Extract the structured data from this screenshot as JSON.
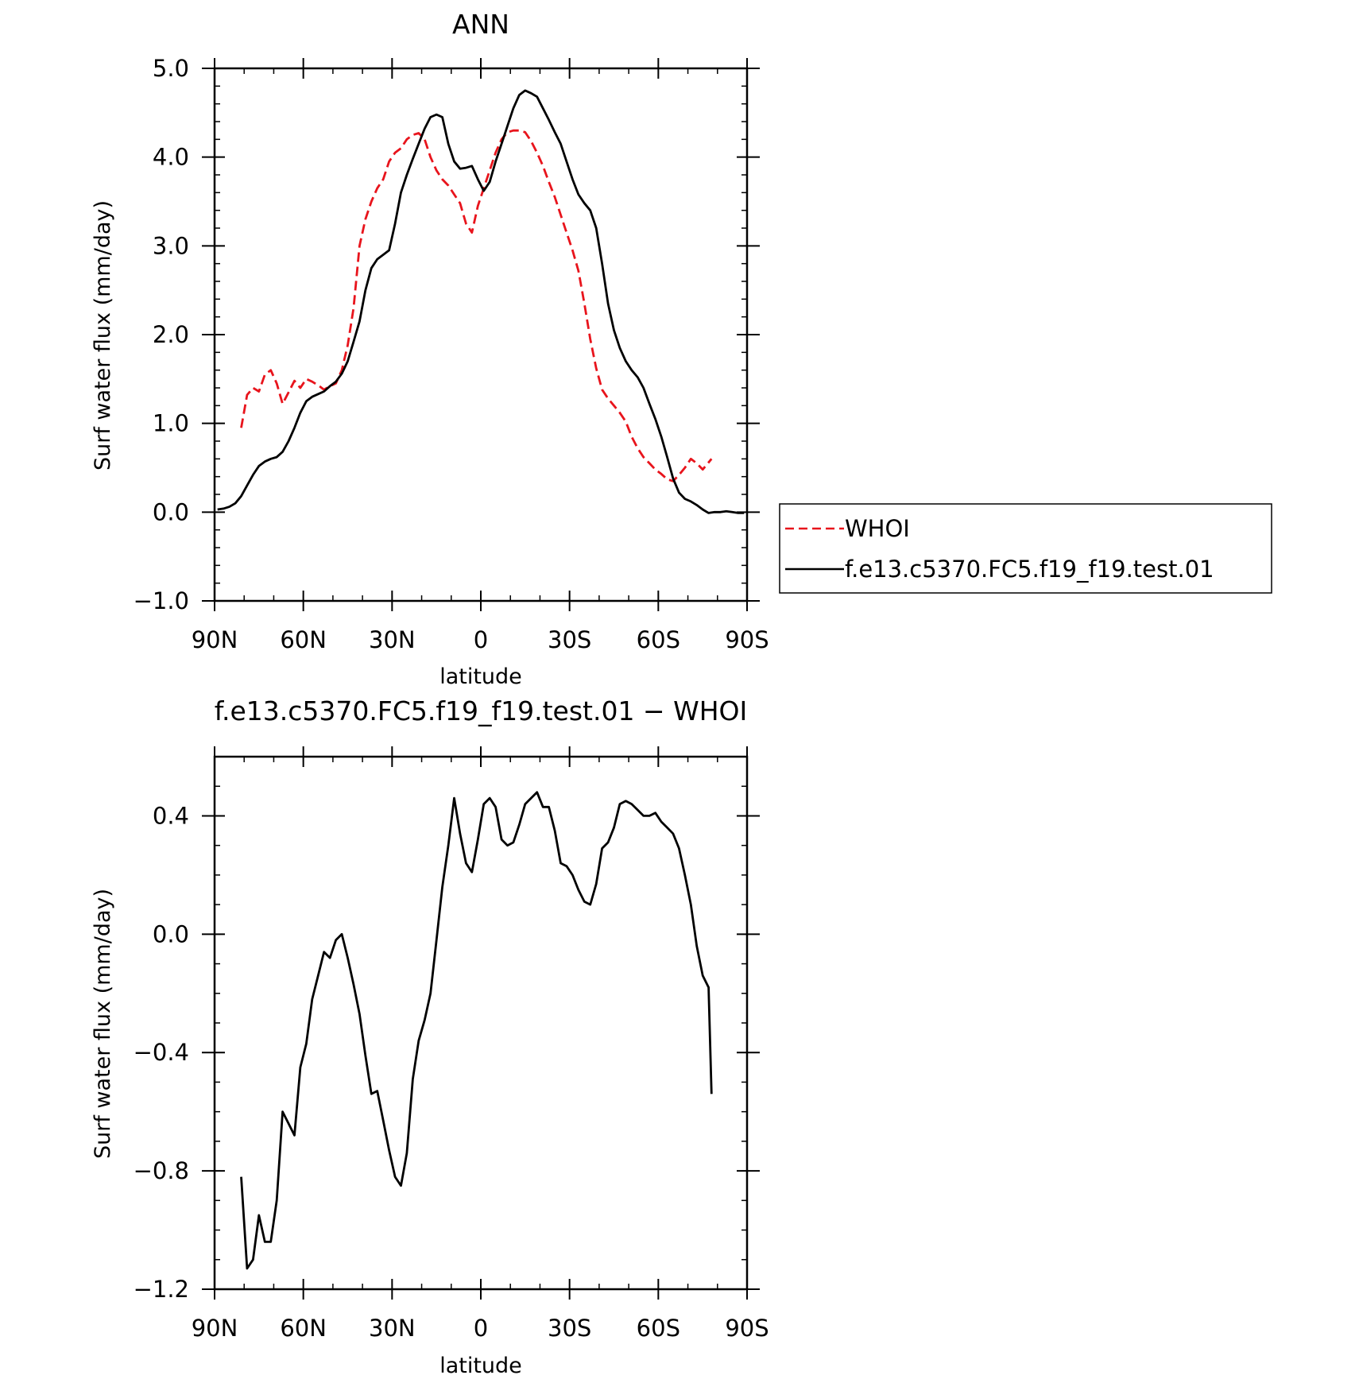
{
  "colors": {
    "whoi": "#e8141c",
    "model": "#000000",
    "frame": "#000000"
  },
  "chart_data": [
    {
      "type": "line",
      "title": "ANN",
      "xlabel": "latitude",
      "ylabel": "Surf water flux (mm/day)",
      "xlim": [
        90,
        -90
      ],
      "ylim": [
        -1.0,
        5.0
      ],
      "x_ticks": [
        {
          "value": 90,
          "label": "90N"
        },
        {
          "value": 60,
          "label": "60N"
        },
        {
          "value": 30,
          "label": "30N"
        },
        {
          "value": 0,
          "label": "0"
        },
        {
          "value": -30,
          "label": "30S"
        },
        {
          "value": -60,
          "label": "60S"
        },
        {
          "value": -90,
          "label": "90S"
        }
      ],
      "y_ticks": [
        {
          "value": 5.0,
          "label": "5.0"
        },
        {
          "value": 4.0,
          "label": "4.0"
        },
        {
          "value": 3.0,
          "label": "3.0"
        },
        {
          "value": 2.0,
          "label": "2.0"
        },
        {
          "value": 1.0,
          "label": "1.0"
        },
        {
          "value": 0.0,
          "label": "0.0"
        },
        {
          "value": -1.0,
          "label": "−1.0"
        }
      ],
      "legend": {
        "position": "right",
        "entries": [
          "WHOI",
          "f.e13.c5370.FC5.f19_f19.test.01"
        ]
      },
      "series": [
        {
          "name": "WHOI",
          "style": "dashed",
          "color": "#e8141c",
          "x": [
            81,
            79,
            77,
            75,
            73,
            71,
            69,
            67,
            65,
            63,
            61,
            59,
            57,
            55,
            53,
            51,
            49,
            47,
            45,
            43,
            41,
            39,
            37,
            35,
            33,
            31,
            29,
            27,
            25,
            23,
            21,
            19,
            17,
            15,
            13,
            11,
            9,
            7,
            5,
            3,
            1,
            -1,
            -3,
            -5,
            -7,
            -9,
            -11,
            -13,
            -15,
            -17,
            -19,
            -21,
            -23,
            -25,
            -27,
            -29,
            -31,
            -33,
            -35,
            -37,
            -39,
            -41,
            -43,
            -45,
            -47,
            -49,
            -51,
            -53,
            -55,
            -57,
            -59,
            -61,
            -63,
            -65,
            -67,
            -69,
            -71,
            -73,
            -75,
            -77,
            -78
          ],
          "y": [
            0.95,
            1.32,
            1.4,
            1.36,
            1.55,
            1.6,
            1.45,
            1.22,
            1.35,
            1.48,
            1.4,
            1.5,
            1.47,
            1.43,
            1.38,
            1.42,
            1.45,
            1.6,
            1.88,
            2.3,
            3.0,
            3.3,
            3.5,
            3.65,
            3.75,
            3.95,
            4.05,
            4.1,
            4.2,
            4.25,
            4.27,
            4.2,
            4.0,
            3.85,
            3.75,
            3.68,
            3.58,
            3.48,
            3.25,
            3.15,
            3.45,
            3.65,
            3.85,
            4.05,
            4.2,
            4.28,
            4.3,
            4.3,
            4.28,
            4.18,
            4.05,
            3.9,
            3.72,
            3.55,
            3.35,
            3.15,
            2.95,
            2.72,
            2.35,
            1.95,
            1.62,
            1.38,
            1.28,
            1.2,
            1.12,
            1.02,
            0.85,
            0.72,
            0.62,
            0.55,
            0.48,
            0.43,
            0.37,
            0.35,
            0.42,
            0.5,
            0.6,
            0.55,
            0.48,
            0.56,
            0.6
          ]
        },
        {
          "name": "f.e13.c5370.FC5.f19_f19.test.01",
          "style": "solid",
          "color": "#000000",
          "x": [
            89,
            87,
            85,
            83,
            81,
            79,
            77,
            75,
            73,
            71,
            69,
            67,
            65,
            63,
            61,
            59,
            57,
            55,
            53,
            51,
            49,
            47,
            45,
            43,
            41,
            39,
            37,
            35,
            33,
            31,
            29,
            27,
            25,
            23,
            21,
            19,
            17,
            15,
            13,
            11,
            9,
            7,
            5,
            3,
            1,
            -1,
            -3,
            -5,
            -7,
            -9,
            -11,
            -13,
            -15,
            -17,
            -19,
            -21,
            -23,
            -25,
            -27,
            -29,
            -31,
            -33,
            -35,
            -37,
            -39,
            -41,
            -43,
            -45,
            -47,
            -49,
            -51,
            -53,
            -55,
            -57,
            -59,
            -61,
            -63,
            -65,
            -67,
            -69,
            -71,
            -73,
            -75,
            -77,
            -79,
            -81,
            -83,
            -85,
            -87,
            -89
          ],
          "y": [
            0.03,
            0.04,
            0.06,
            0.1,
            0.18,
            0.3,
            0.42,
            0.52,
            0.57,
            0.6,
            0.62,
            0.68,
            0.8,
            0.95,
            1.12,
            1.25,
            1.3,
            1.33,
            1.36,
            1.42,
            1.47,
            1.56,
            1.7,
            1.92,
            2.15,
            2.5,
            2.75,
            2.85,
            2.9,
            2.95,
            3.25,
            3.6,
            3.8,
            3.98,
            4.15,
            4.32,
            4.45,
            4.48,
            4.45,
            4.15,
            3.95,
            3.87,
            3.88,
            3.9,
            3.75,
            3.62,
            3.72,
            3.95,
            4.15,
            4.35,
            4.55,
            4.7,
            4.75,
            4.72,
            4.68,
            4.55,
            4.42,
            4.28,
            4.15,
            3.95,
            3.75,
            3.58,
            3.48,
            3.4,
            3.2,
            2.8,
            2.35,
            2.05,
            1.85,
            1.7,
            1.6,
            1.52,
            1.4,
            1.22,
            1.05,
            0.85,
            0.62,
            0.38,
            0.22,
            0.15,
            0.12,
            0.08,
            0.03,
            -0.01,
            0.0,
            0.0,
            0.01,
            0.0,
            -0.01,
            -0.01
          ]
        }
      ]
    },
    {
      "type": "line",
      "title": "f.e13.c5370.FC5.f19_f19.test.01 − WHOI",
      "xlabel": "latitude",
      "ylabel": "Surf water flux (mm/day)",
      "xlim": [
        90,
        -90
      ],
      "ylim": [
        -1.2,
        0.6
      ],
      "x_ticks": [
        {
          "value": 90,
          "label": "90N"
        },
        {
          "value": 60,
          "label": "60N"
        },
        {
          "value": 30,
          "label": "30N"
        },
        {
          "value": 0,
          "label": "0"
        },
        {
          "value": -30,
          "label": "30S"
        },
        {
          "value": -60,
          "label": "60S"
        },
        {
          "value": -90,
          "label": "90S"
        }
      ],
      "y_ticks": [
        {
          "value": 0.4,
          "label": "0.4"
        },
        {
          "value": 0.0,
          "label": "0.0"
        },
        {
          "value": -0.4,
          "label": "−0.4"
        },
        {
          "value": -0.8,
          "label": "−0.8"
        },
        {
          "value": -1.2,
          "label": "−1.2"
        }
      ],
      "series": [
        {
          "style": "solid",
          "color": "#000000",
          "x": [
            81,
            79,
            77,
            75,
            73,
            71,
            69,
            67,
            65,
            63,
            61,
            59,
            57,
            55,
            53,
            51,
            49,
            47,
            45,
            43,
            41,
            39,
            37,
            35,
            33,
            31,
            29,
            27,
            25,
            23,
            21,
            19,
            17,
            15,
            13,
            11,
            9,
            7,
            5,
            3,
            1,
            -1,
            -3,
            -5,
            -7,
            -9,
            -11,
            -13,
            -15,
            -17,
            -19,
            -21,
            -23,
            -25,
            -27,
            -29,
            -31,
            -33,
            -35,
            -37,
            -39,
            -41,
            -43,
            -45,
            -47,
            -49,
            -51,
            -53,
            -55,
            -57,
            -59,
            -61,
            -63,
            -65,
            -67,
            -69,
            -71,
            -73,
            -75,
            -77,
            -78
          ],
          "y": [
            -0.82,
            -1.13,
            -1.1,
            -0.95,
            -1.04,
            -1.04,
            -0.9,
            -0.6,
            -0.64,
            -0.68,
            -0.45,
            -0.37,
            -0.22,
            -0.14,
            -0.06,
            -0.08,
            -0.02,
            0.0,
            -0.08,
            -0.17,
            -0.27,
            -0.41,
            -0.54,
            -0.53,
            -0.63,
            -0.73,
            -0.82,
            -0.85,
            -0.74,
            -0.49,
            -0.36,
            -0.29,
            -0.2,
            -0.02,
            0.16,
            0.3,
            0.46,
            0.34,
            0.24,
            0.21,
            0.32,
            0.44,
            0.46,
            0.43,
            0.32,
            0.3,
            0.31,
            0.37,
            0.44,
            0.46,
            0.48,
            0.43,
            0.43,
            0.35,
            0.24,
            0.23,
            0.2,
            0.15,
            0.11,
            0.1,
            0.17,
            0.29,
            0.31,
            0.36,
            0.44,
            0.45,
            0.44,
            0.42,
            0.4,
            0.4,
            0.41,
            0.38,
            0.36,
            0.34,
            0.29,
            0.2,
            0.1,
            -0.04,
            -0.14,
            -0.18,
            -0.54
          ]
        }
      ]
    }
  ]
}
